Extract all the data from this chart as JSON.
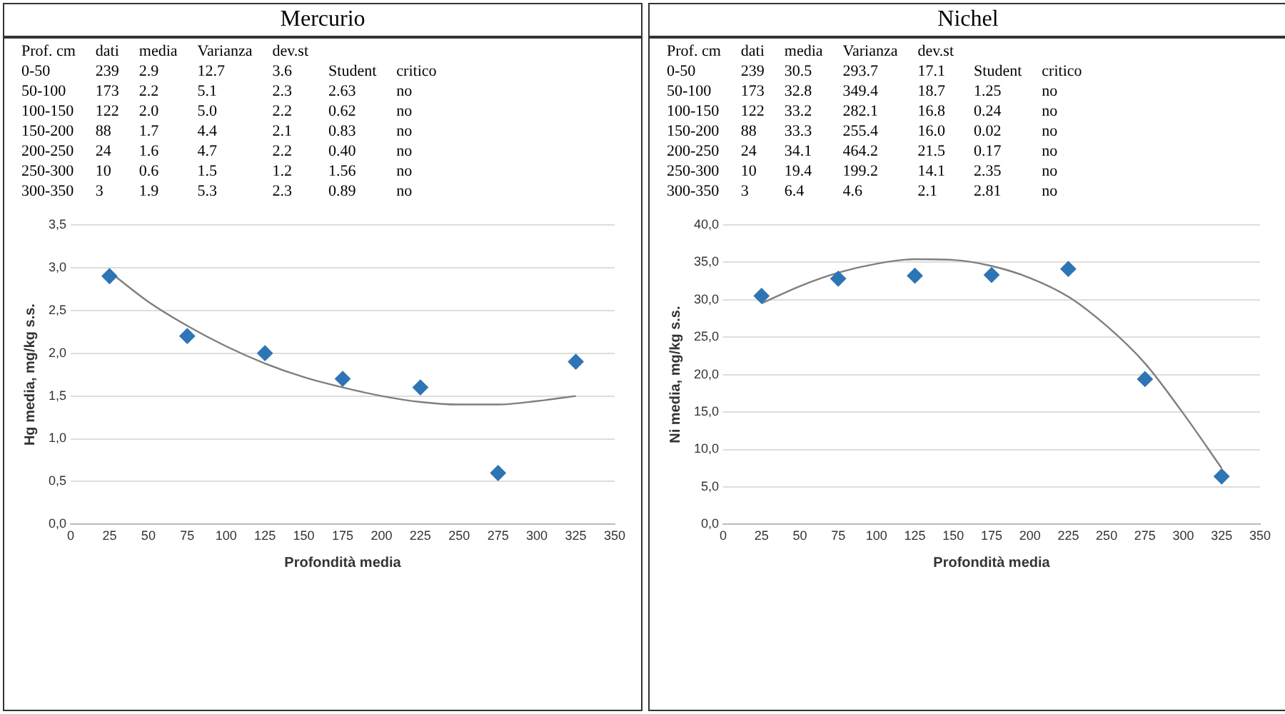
{
  "chart_data": [
    {
      "type": "scatter",
      "title": "Mercurio",
      "xlabel": "Profondità media",
      "ylabel": "Hg media, mg/kg s.s.",
      "annotations": [
        "Prof. cm\tdati\tmedia\tVarianza\tdev.st",
        "0-50\t239\t2.9\t12.7\t3.6\tStudent\tcritico",
        "50-100\t173\t2.2\t5.1\t2.3\t2.63\tno",
        "100-150\t122\t2.0\t5.0\t2.2\t0.62\tno",
        "150-200\t88\t1.7\t4.4\t2.1\t0.83\tno",
        "200-250\t24\t1.6\t4.7\t2.2\t0.40\tno",
        "250-300\t10\t0.6\t1.5\t1.2\t1.56\tno",
        "300-350\t3\t1.9\t5.3\t2.3\t0.89\tno"
      ],
      "x": [
        25,
        75,
        125,
        175,
        225,
        275,
        325
      ],
      "series": [
        {
          "color": "#2e75b6",
          "marker": "diamond",
          "values": [
            2.9,
            2.2,
            2.0,
            1.7,
            1.6,
            0.6,
            1.9
          ]
        },
        {
          "type": "line",
          "color": "#7f7f7f",
          "x": [
            25,
            50,
            75,
            100,
            125,
            150,
            175,
            200,
            225,
            250,
            275,
            300,
            325
          ],
          "values": [
            2.95,
            2.6,
            2.32,
            2.08,
            1.88,
            1.72,
            1.6,
            1.5,
            1.43,
            1.4,
            1.4,
            1.44,
            1.5
          ]
        }
      ],
      "xlim": [
        0,
        350
      ],
      "xticks": [
        0,
        25,
        50,
        75,
        100,
        125,
        150,
        175,
        200,
        225,
        250,
        275,
        300,
        325,
        350
      ],
      "ylim": [
        0,
        3.5
      ],
      "yticks": [
        {
          "value": 0,
          "label": "0,0"
        },
        {
          "value": 0.5,
          "label": "0,5"
        },
        {
          "value": 1,
          "label": "1,0"
        },
        {
          "value": 1.5,
          "label": "1,5"
        },
        {
          "value": 2,
          "label": "2,0"
        },
        {
          "value": 2.5,
          "label": "2,5"
        },
        {
          "value": 3,
          "label": "3,0"
        },
        {
          "value": 3.5,
          "label": "3,5"
        }
      ],
      "grid": "y"
    },
    {
      "type": "scatter",
      "title": "Nichel",
      "xlabel": "Profondità media",
      "ylabel": "Ni media, mg/kg s.s.",
      "annotations": [
        "Prof. cm\tdati\tmedia\tVarianza\tdev.st",
        "0-50\t239\t30.5\t293.7\t17.1\tStudent\tcritico",
        "50-100\t173\t32.8\t349.4\t18.7\t1.25\tno",
        "100-150\t122\t33.2\t282.1\t16.8\t0.24\tno",
        "150-200\t88\t33.3\t255.4\t16.0\t0.02\tno",
        "200-250\t24\t34.1\t464.2\t21.5\t0.17\tno",
        "250-300\t10\t19.4\t199.2\t14.1\t2.35\tno",
        "300-350\t3\t6.4\t4.6\t2.1\t2.81\tno"
      ],
      "x": [
        25,
        75,
        125,
        175,
        225,
        275,
        325
      ],
      "series": [
        {
          "color": "#2e75b6",
          "marker": "diamond",
          "values": [
            30.5,
            32.8,
            33.2,
            33.3,
            34.1,
            19.4,
            6.4
          ]
        },
        {
          "type": "line",
          "color": "#7f7f7f",
          "x": [
            25,
            50,
            75,
            100,
            125,
            150,
            175,
            200,
            225,
            250,
            275,
            300,
            325
          ],
          "values": [
            29.5,
            31.8,
            33.6,
            34.8,
            35.4,
            35.3,
            34.5,
            32.9,
            30.4,
            26.5,
            21.5,
            14.8,
            7.5
          ]
        }
      ],
      "xlim": [
        0,
        350
      ],
      "xticks": [
        0,
        25,
        50,
        75,
        100,
        125,
        150,
        175,
        200,
        225,
        250,
        275,
        300,
        325,
        350
      ],
      "ylim": [
        0,
        40
      ],
      "yticks": [
        {
          "value": 0,
          "label": "0,0"
        },
        {
          "value": 5,
          "label": "5,0"
        },
        {
          "value": 10,
          "label": "10,0"
        },
        {
          "value": 15,
          "label": "15,0"
        },
        {
          "value": 20,
          "label": "20,0"
        },
        {
          "value": 25,
          "label": "25,0"
        },
        {
          "value": 30,
          "label": "30,0"
        },
        {
          "value": 35,
          "label": "35,0"
        },
        {
          "value": 40,
          "label": "40,0"
        }
      ],
      "grid": "y"
    }
  ]
}
